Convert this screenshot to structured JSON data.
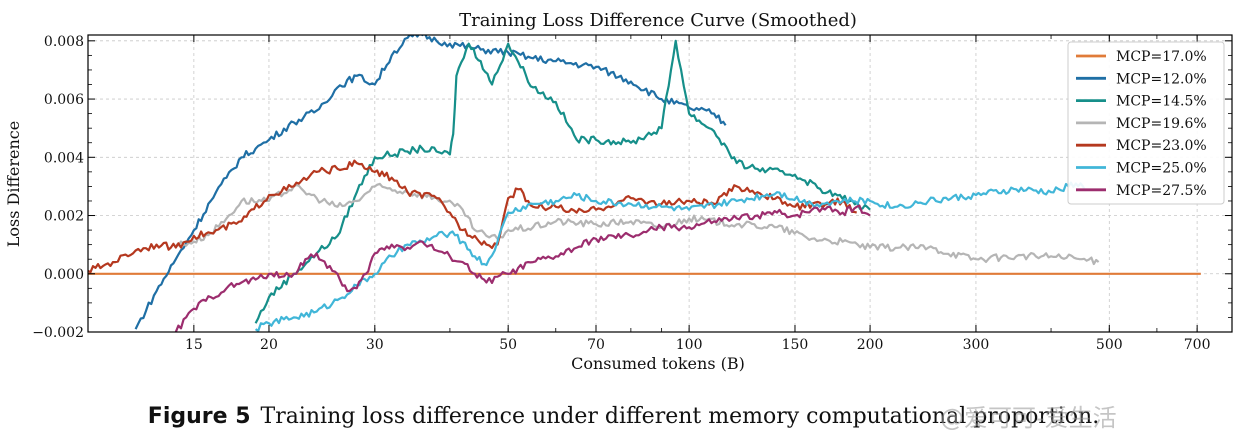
{
  "caption": {
    "label": "Figure 5",
    "text": "Training loss difference under different memory computational proportion."
  },
  "watermark": "@爱可可-爱生活",
  "chart_data": {
    "type": "line",
    "title": "Training Loss Difference Curve (Smoothed)",
    "xlabel": "Consumed tokens (B)",
    "ylabel": "Loss Difference",
    "x_scale": "log",
    "xlim": [
      10,
      800
    ],
    "ylim": [
      -0.002,
      0.0082
    ],
    "x_ticks": [
      15,
      20,
      30,
      50,
      70,
      100,
      150,
      200,
      300,
      500,
      700
    ],
    "y_ticks": [
      -0.002,
      0.0,
      0.002,
      0.004,
      0.006,
      0.008
    ],
    "y_tick_labels": [
      "−0.002",
      "0.000",
      "0.002",
      "0.004",
      "0.006",
      "0.008"
    ],
    "grid": true,
    "legend_position": "top-right",
    "series": [
      {
        "name": "MCP=17.0%",
        "color": "#e07b39",
        "points": [
          [
            10,
            0.0
          ],
          [
            20,
            0.0
          ],
          [
            50,
            0.0
          ],
          [
            100,
            0.0
          ],
          [
            200,
            0.0
          ],
          [
            400,
            0.0
          ],
          [
            710,
            0.0
          ]
        ]
      },
      {
        "name": "MCP=12.0%",
        "color": "#1f6fa5",
        "points": [
          [
            12,
            -0.0019
          ],
          [
            13,
            -0.0006
          ],
          [
            14,
            0.0005
          ],
          [
            15,
            0.0015
          ],
          [
            16,
            0.0025
          ],
          [
            17,
            0.0033
          ],
          [
            18,
            0.004
          ],
          [
            19,
            0.0043
          ],
          [
            20,
            0.0046
          ],
          [
            22,
            0.0052
          ],
          [
            24,
            0.0056
          ],
          [
            26,
            0.0064
          ],
          [
            28,
            0.0068
          ],
          [
            30,
            0.0065
          ],
          [
            32,
            0.0075
          ],
          [
            34,
            0.0081
          ],
          [
            36,
            0.0082
          ],
          [
            38,
            0.008
          ],
          [
            40,
            0.0079
          ],
          [
            45,
            0.0077
          ],
          [
            50,
            0.0076
          ],
          [
            55,
            0.0074
          ],
          [
            60,
            0.0073
          ],
          [
            70,
            0.0071
          ],
          [
            80,
            0.0066
          ],
          [
            90,
            0.006
          ],
          [
            100,
            0.0057
          ],
          [
            110,
            0.0055
          ],
          [
            115,
            0.0051
          ]
        ]
      },
      {
        "name": "MCP=14.5%",
        "color": "#168f8a",
        "points": [
          [
            19,
            -0.0017
          ],
          [
            20,
            -0.0008
          ],
          [
            22,
            0.0
          ],
          [
            24,
            0.0007
          ],
          [
            26,
            0.0013
          ],
          [
            28,
            0.0028
          ],
          [
            30,
            0.004
          ],
          [
            34,
            0.0042
          ],
          [
            36,
            0.0043
          ],
          [
            38,
            0.0042
          ],
          [
            40,
            0.0041
          ],
          [
            40.5,
            0.0048
          ],
          [
            41,
            0.0068
          ],
          [
            43,
            0.0079
          ],
          [
            45,
            0.0073
          ],
          [
            47,
            0.0065
          ],
          [
            50,
            0.0079
          ],
          [
            55,
            0.0064
          ],
          [
            60,
            0.0059
          ],
          [
            65,
            0.0046
          ],
          [
            70,
            0.0046
          ],
          [
            80,
            0.0045
          ],
          [
            90,
            0.005
          ],
          [
            95,
            0.008
          ],
          [
            100,
            0.0055
          ],
          [
            110,
            0.0049
          ],
          [
            120,
            0.0038
          ],
          [
            130,
            0.0036
          ],
          [
            150,
            0.0034
          ],
          [
            170,
            0.0028
          ],
          [
            185,
            0.0025
          ],
          [
            200,
            0.0022
          ]
        ]
      },
      {
        "name": "MCP=19.6%",
        "color": "#b5b5b5",
        "points": [
          [
            14,
            0.001
          ],
          [
            15,
            0.0011
          ],
          [
            16,
            0.0014
          ],
          [
            17,
            0.0019
          ],
          [
            18,
            0.0025
          ],
          [
            20,
            0.0025
          ],
          [
            22,
            0.003
          ],
          [
            24,
            0.0026
          ],
          [
            26,
            0.0023
          ],
          [
            28,
            0.0025
          ],
          [
            30,
            0.003
          ],
          [
            34,
            0.0028
          ],
          [
            38,
            0.0026
          ],
          [
            42,
            0.0022
          ],
          [
            44,
            0.0015
          ],
          [
            46,
            0.0013
          ],
          [
            48,
            0.0012
          ],
          [
            50,
            0.0015
          ],
          [
            55,
            0.0016
          ],
          [
            60,
            0.0018
          ],
          [
            70,
            0.0017
          ],
          [
            80,
            0.0018
          ],
          [
            90,
            0.0016
          ],
          [
            100,
            0.0019
          ],
          [
            120,
            0.0017
          ],
          [
            140,
            0.0016
          ],
          [
            160,
            0.0012
          ],
          [
            180,
            0.0011
          ],
          [
            200,
            0.0009
          ],
          [
            250,
            0.0009
          ],
          [
            300,
            0.0005
          ],
          [
            350,
            0.0006
          ],
          [
            400,
            0.0006
          ],
          [
            450,
            0.0005
          ],
          [
            480,
            0.0004
          ]
        ]
      },
      {
        "name": "MCP=23.0%",
        "color": "#b5381f",
        "points": [
          [
            10,
            0.0001
          ],
          [
            11,
            0.0004
          ],
          [
            12,
            0.0008
          ],
          [
            13,
            0.001
          ],
          [
            14,
            0.0009
          ],
          [
            15,
            0.0013
          ],
          [
            16,
            0.0014
          ],
          [
            18,
            0.0018
          ],
          [
            20,
            0.0027
          ],
          [
            22,
            0.003
          ],
          [
            24,
            0.0035
          ],
          [
            26,
            0.0036
          ],
          [
            28,
            0.0038
          ],
          [
            30,
            0.0035
          ],
          [
            32,
            0.0033
          ],
          [
            34,
            0.0028
          ],
          [
            38,
            0.0026
          ],
          [
            40,
            0.0021
          ],
          [
            42,
            0.0015
          ],
          [
            44,
            0.0013
          ],
          [
            46,
            0.001
          ],
          [
            48,
            0.001
          ],
          [
            50,
            0.0026
          ],
          [
            52,
            0.0029
          ],
          [
            55,
            0.0023
          ],
          [
            60,
            0.0023
          ],
          [
            65,
            0.0021
          ],
          [
            70,
            0.0022
          ],
          [
            80,
            0.0026
          ],
          [
            90,
            0.0024
          ],
          [
            100,
            0.0025
          ],
          [
            110,
            0.0024
          ],
          [
            120,
            0.003
          ],
          [
            130,
            0.0028
          ],
          [
            150,
            0.0023
          ],
          [
            170,
            0.0024
          ],
          [
            180,
            0.0025
          ],
          [
            190,
            0.0021
          ]
        ]
      },
      {
        "name": "MCP=25.0%",
        "color": "#41b6d8",
        "points": [
          [
            19,
            -0.0019
          ],
          [
            20,
            -0.0017
          ],
          [
            22,
            -0.0015
          ],
          [
            24,
            -0.0013
          ],
          [
            26,
            -0.0009
          ],
          [
            28,
            -0.0004
          ],
          [
            30,
            0.0
          ],
          [
            32,
            0.0006
          ],
          [
            34,
            0.001
          ],
          [
            36,
            0.0011
          ],
          [
            38,
            0.0013
          ],
          [
            40,
            0.0014
          ],
          [
            42,
            0.0011
          ],
          [
            44,
            0.0006
          ],
          [
            46,
            0.0003
          ],
          [
            48,
            0.0011
          ],
          [
            50,
            0.0021
          ],
          [
            55,
            0.0024
          ],
          [
            60,
            0.0025
          ],
          [
            65,
            0.0027
          ],
          [
            70,
            0.0025
          ],
          [
            80,
            0.0024
          ],
          [
            90,
            0.0023
          ],
          [
            100,
            0.0022
          ],
          [
            120,
            0.0025
          ],
          [
            140,
            0.0028
          ],
          [
            160,
            0.0024
          ],
          [
            180,
            0.0025
          ],
          [
            200,
            0.0025
          ],
          [
            220,
            0.0023
          ],
          [
            250,
            0.0025
          ],
          [
            300,
            0.0027
          ],
          [
            350,
            0.0029
          ],
          [
            400,
            0.0028
          ],
          [
            440,
            0.0031
          ],
          [
            460,
            0.0029
          ]
        ]
      },
      {
        "name": "MCP=27.5%",
        "color": "#9c2d6e",
        "points": [
          [
            14,
            -0.002
          ],
          [
            15,
            -0.0012
          ],
          [
            16,
            -0.0008
          ],
          [
            17,
            -0.0005
          ],
          [
            18,
            -0.0003
          ],
          [
            19,
            -0.0002
          ],
          [
            20,
            0.0
          ],
          [
            21,
            -0.0001
          ],
          [
            22,
            0.0
          ],
          [
            23,
            0.0005
          ],
          [
            24,
            0.0007
          ],
          [
            25,
            0.0002
          ],
          [
            26,
            0.0
          ],
          [
            27,
            -0.0006
          ],
          [
            28,
            -0.0005
          ],
          [
            29,
            0.0
          ],
          [
            30,
            0.0007
          ],
          [
            32,
            0.001
          ],
          [
            34,
            0.0009
          ],
          [
            36,
            0.0011
          ],
          [
            38,
            0.0008
          ],
          [
            40,
            0.0006
          ],
          [
            42,
            0.0004
          ],
          [
            44,
            0.0
          ],
          [
            46,
            -0.0003
          ],
          [
            48,
            -0.0001
          ],
          [
            50,
            0.0
          ],
          [
            55,
            0.0004
          ],
          [
            60,
            0.0006
          ],
          [
            65,
            0.0009
          ],
          [
            70,
            0.0012
          ],
          [
            80,
            0.0013
          ],
          [
            90,
            0.0016
          ],
          [
            100,
            0.0016
          ],
          [
            110,
            0.0018
          ],
          [
            120,
            0.0019
          ],
          [
            130,
            0.002
          ],
          [
            140,
            0.0021
          ],
          [
            150,
            0.002
          ],
          [
            160,
            0.0022
          ],
          [
            170,
            0.0023
          ],
          [
            180,
            0.0021
          ],
          [
            190,
            0.0023
          ],
          [
            200,
            0.002
          ]
        ]
      }
    ]
  }
}
